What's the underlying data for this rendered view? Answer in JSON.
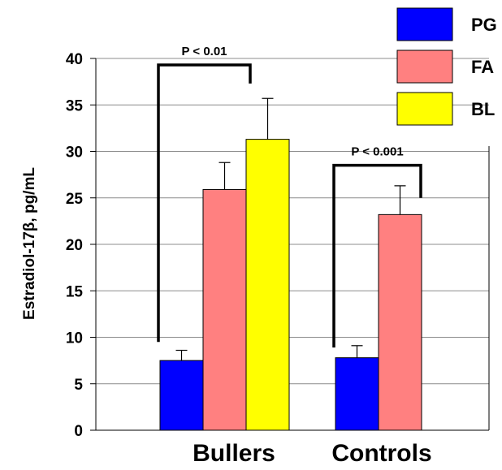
{
  "chart_data": {
    "type": "bar",
    "ylabel": "Estradiol-17β, pg/mL",
    "ylim": [
      0,
      40
    ],
    "yticks": [
      "0",
      "5",
      "10",
      "15",
      "20",
      "25",
      "30",
      "35",
      "40"
    ],
    "grid": true,
    "legend_position": "top-right",
    "categories": [
      "Bullers",
      "Controls"
    ],
    "series": [
      {
        "name": "PG",
        "color": "#0000ff",
        "values": [
          7.5,
          7.8
        ],
        "errors": [
          1.1,
          1.3
        ]
      },
      {
        "name": "FA",
        "color": "#ff8080",
        "values": [
          25.9,
          23.2
        ],
        "errors": [
          2.9,
          3.1
        ]
      },
      {
        "name": "BL",
        "color": "#ffff00",
        "values": [
          31.3,
          null
        ],
        "errors": [
          4.4,
          null
        ]
      }
    ],
    "annotations": [
      {
        "label": "P < 0.01",
        "category": "Bullers",
        "from_series": "PG",
        "to_series": "BL",
        "y": 39.3
      },
      {
        "label": "P < 0.001",
        "category": "Controls",
        "from_series": "PG",
        "to_series": "FA",
        "y": 28.5
      }
    ]
  }
}
